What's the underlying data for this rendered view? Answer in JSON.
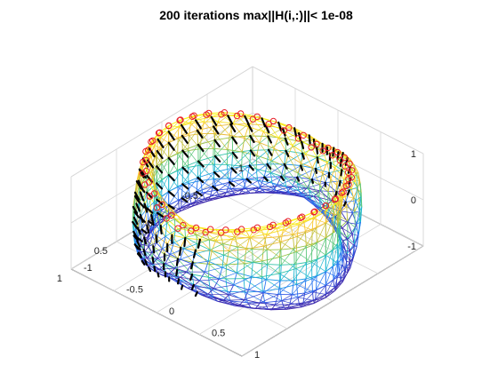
{
  "chart_data": {
    "type": "surface3d",
    "title": "200 iterations  max||H(i,:)||< 1e-08",
    "surface": "torus-mesh",
    "colormap": [
      "#3e26a8",
      "#2e62f5",
      "#17b1e0",
      "#38c99a",
      "#a6c23a",
      "#f6ba39",
      "#f9fb0e"
    ],
    "boundary_marker_color": "#e8202a",
    "vector_color": "#000000",
    "grid": true,
    "axes": {
      "x": {
        "lim": [
          -1,
          1
        ],
        "ticks": [
          {
            "v": -1,
            "label": "-1"
          },
          {
            "v": -0.5,
            "label": "-0.5"
          },
          {
            "v": 0,
            "label": "0"
          },
          {
            "v": 0.5,
            "label": "0.5"
          },
          {
            "v": 1,
            "label": "1"
          }
        ]
      },
      "y": {
        "lim": [
          -1,
          1
        ],
        "ticks": [
          {
            "v": -1,
            "label": "-1"
          },
          {
            "v": -0.5,
            "label": "-0.5"
          },
          {
            "v": 0,
            "label": "0"
          },
          {
            "v": 0.5,
            "label": "0.5"
          },
          {
            "v": 1,
            "label": "1"
          }
        ]
      },
      "z": {
        "lim": [
          -1,
          1
        ],
        "ticks": [
          {
            "v": -1,
            "label": "-1"
          },
          {
            "v": 0,
            "label": "0"
          },
          {
            "v": 1,
            "label": "1"
          }
        ]
      }
    }
  }
}
